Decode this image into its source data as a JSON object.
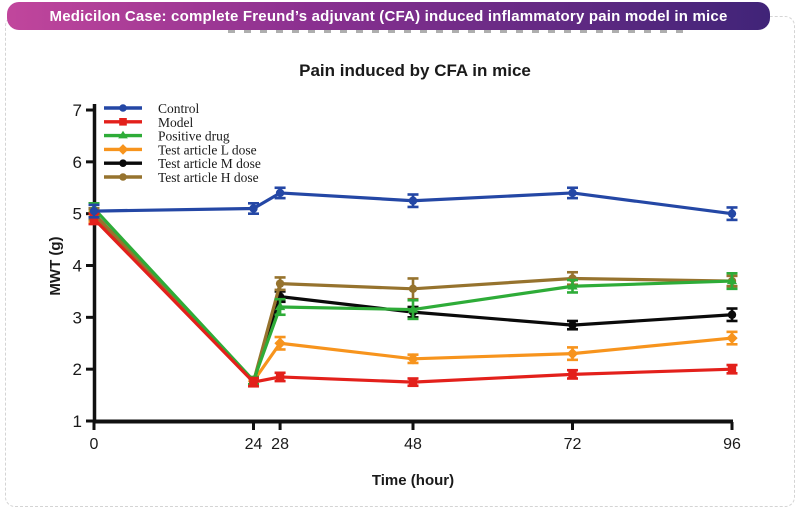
{
  "banner": {
    "title": "Medicilon Case: complete Freund’s adjuvant (CFA) induced inflammatory pain model in mice",
    "gradient": [
      "#C1469C",
      "#8A3090",
      "#402478"
    ],
    "text_color": "#FFFFFF"
  },
  "card": {
    "border_color": "#D4D4D4"
  },
  "chart_data": {
    "type": "line",
    "title": "Pain induced by CFA in mice",
    "xlabel": "Time (hour)",
    "ylabel": "MWT (g)",
    "x": [
      0,
      24,
      28,
      48,
      72,
      96
    ],
    "xticks": [
      0,
      24,
      28,
      48,
      72,
      96
    ],
    "ylim": [
      1,
      7
    ],
    "yticks": [
      1,
      2,
      3,
      4,
      5,
      6,
      7
    ],
    "grid": false,
    "error_bars": true,
    "legend_position": "top-left-inside",
    "axis_color": "#111111",
    "series": [
      {
        "name": "Control",
        "color": "#2447A5",
        "marker": "circle",
        "values": [
          5.05,
          5.1,
          5.4,
          5.25,
          5.4,
          5.0
        ],
        "err": [
          0.12,
          0.1,
          0.1,
          0.12,
          0.1,
          0.12
        ]
      },
      {
        "name": "Model",
        "color": "#E3201B",
        "marker": "square",
        "values": [
          4.9,
          1.75,
          1.85,
          1.75,
          1.9,
          2.0
        ],
        "err": [
          0.1,
          0.08,
          0.08,
          0.07,
          0.08,
          0.08
        ]
      },
      {
        "name": "Positive drug",
        "color": "#2EAC38",
        "marker": "triangle",
        "values": [
          5.1,
          1.78,
          3.2,
          3.15,
          3.6,
          3.7
        ],
        "err": [
          0.1,
          0.07,
          0.15,
          0.18,
          0.12,
          0.15
        ]
      },
      {
        "name": "Test article L dose",
        "color": "#F7941D",
        "marker": "diamond",
        "values": [
          4.95,
          1.77,
          2.5,
          2.2,
          2.3,
          2.6
        ],
        "err": [
          0.1,
          0.07,
          0.12,
          0.08,
          0.12,
          0.12
        ]
      },
      {
        "name": "Test article M dose",
        "color": "#0A0A0A",
        "marker": "circle",
        "values": [
          5.0,
          1.76,
          3.4,
          3.1,
          2.85,
          3.05
        ],
        "err": [
          0.1,
          0.07,
          0.1,
          0.1,
          0.08,
          0.12
        ]
      },
      {
        "name": "Test article H dose",
        "color": "#96732E",
        "marker": "circle",
        "values": [
          5.0,
          1.76,
          3.65,
          3.55,
          3.75,
          3.7
        ],
        "err": [
          0.1,
          0.07,
          0.12,
          0.2,
          0.12,
          0.1
        ]
      }
    ],
    "draw_order": [
      3,
      4,
      5,
      2,
      1,
      0
    ]
  }
}
